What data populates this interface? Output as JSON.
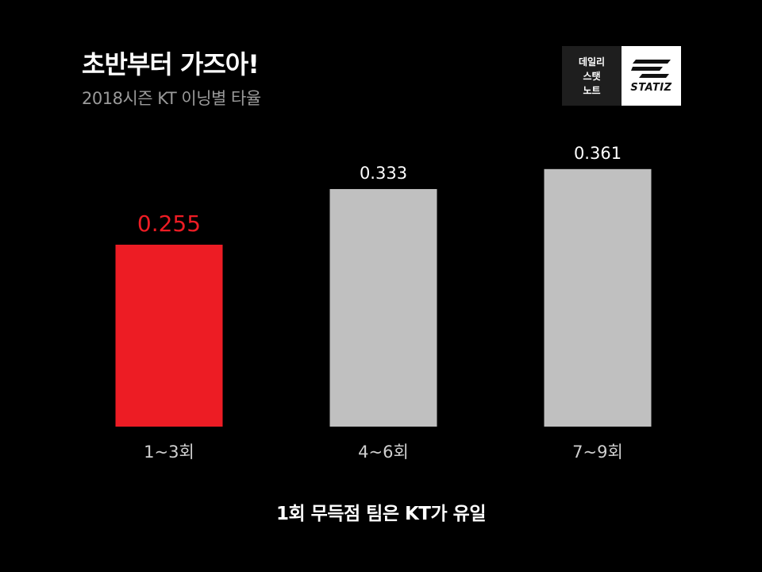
{
  "title": "초반부터 가즈아!",
  "subtitle": "2018시즌 KT 이닝별 타율",
  "logo": {
    "line1": "데일리",
    "line2": "스탯",
    "line3": "노트",
    "brand": "STATIZ"
  },
  "footnote": "1회 무득점 팀은 KT가 유일",
  "colors": {
    "highlight": "#ed1c24",
    "default": "#c0c0c0",
    "label_highlight": "#ed1c24",
    "label_default": "#ffffff",
    "category_label": "#cfcfcf"
  },
  "chart_data": {
    "type": "bar",
    "categories": [
      "1~3회",
      "4~6회",
      "7~9회"
    ],
    "values": [
      0.255,
      0.333,
      0.361
    ],
    "value_labels": [
      "0.255",
      "0.333",
      "0.361"
    ],
    "highlight_index": 0,
    "ylim": [
      0,
      0.4
    ],
    "grid": false
  }
}
